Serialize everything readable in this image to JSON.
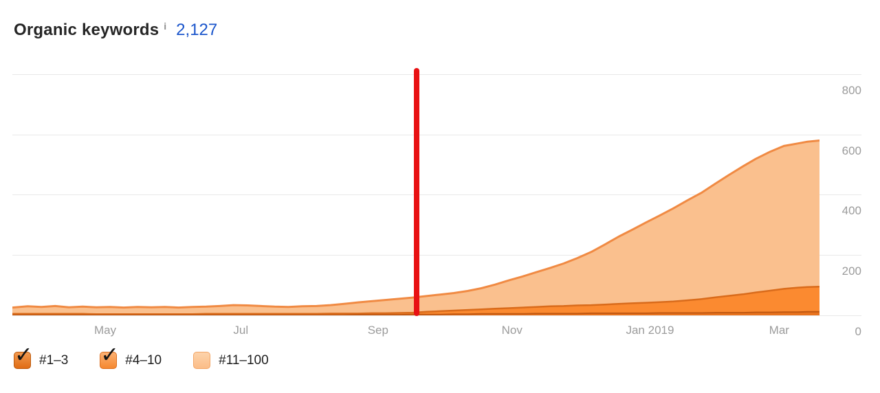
{
  "header": {
    "title": "Organic keywords",
    "info_icon": "i",
    "count": "2,127"
  },
  "chart_data": {
    "type": "area",
    "title": "Organic keywords",
    "stacked": true,
    "ylim": [
      0,
      818
    ],
    "y_ticks": [
      800,
      600,
      400,
      200,
      0
    ],
    "x_ticks": [
      {
        "label": "May",
        "x": 0.115
      },
      {
        "label": "Jul",
        "x": 0.283
      },
      {
        "label": "Sep",
        "x": 0.453
      },
      {
        "label": "Nov",
        "x": 0.619
      },
      {
        "label": "Jan 2019",
        "x": 0.79
      },
      {
        "label": "Mar",
        "x": 0.95
      }
    ],
    "grid": "horizontal",
    "legend_position": "bottom-left",
    "axis_color": "#9b9b9b",
    "grid_color": "#e8e8e8",
    "x": [
      0,
      0.019,
      0.036,
      0.053,
      0.07,
      0.087,
      0.104,
      0.121,
      0.138,
      0.155,
      0.172,
      0.189,
      0.206,
      0.223,
      0.24,
      0.257,
      0.274,
      0.291,
      0.308,
      0.325,
      0.342,
      0.359,
      0.377,
      0.394,
      0.411,
      0.428,
      0.445,
      0.462,
      0.479,
      0.496,
      0.513,
      0.53,
      0.547,
      0.564,
      0.581,
      0.598,
      0.615,
      0.632,
      0.649,
      0.666,
      0.683,
      0.7,
      0.717,
      0.734,
      0.751,
      0.768,
      0.785,
      0.802,
      0.819,
      0.836,
      0.854,
      0.871,
      0.888,
      0.905,
      0.921,
      0.939,
      0.956,
      0.973,
      0.985,
      1
    ],
    "series": [
      {
        "name": "#1–3",
        "fill": "#e8731e",
        "stroke": "#bf5711",
        "stroke_width": 2,
        "values": [
          1,
          1,
          1,
          1,
          1,
          1,
          1,
          1,
          1,
          1,
          1,
          1,
          1,
          1,
          1,
          1,
          1,
          1,
          1,
          1,
          1,
          1,
          1,
          1,
          1,
          2,
          2,
          2,
          2,
          3,
          3,
          3,
          4,
          4,
          5,
          5,
          5,
          5,
          6,
          6,
          6,
          6,
          7,
          7,
          7,
          7,
          7,
          8,
          8,
          8,
          8,
          9,
          9,
          9,
          10,
          10,
          11,
          11,
          12,
          12
        ]
      },
      {
        "name": "#4–10",
        "fill": "#fb8a30",
        "stroke": "#d96b1b",
        "stroke_width": 2.5,
        "values": [
          4,
          4,
          4,
          4,
          4,
          4,
          3,
          3,
          3,
          3,
          3,
          3,
          3,
          3,
          4,
          4,
          4,
          4,
          4,
          4,
          4,
          4,
          4,
          5,
          5,
          4,
          5,
          5,
          6,
          6,
          9,
          11,
          12,
          14,
          15,
          17,
          19,
          21,
          22,
          24,
          25,
          27,
          27,
          29,
          31,
          33,
          35,
          36,
          38,
          42,
          46,
          51,
          56,
          61,
          66,
          72,
          77,
          81,
          82,
          83
        ]
      },
      {
        "name": "#11–100",
        "fill": "#fac08e",
        "stroke": "#f08a43",
        "stroke_width": 3,
        "values": [
          21,
          25,
          23,
          26,
          22,
          24,
          23,
          24,
          22,
          24,
          23,
          24,
          22,
          24,
          24,
          26,
          29,
          28,
          26,
          24,
          23,
          25,
          26,
          28,
          32,
          37,
          40,
          44,
          47,
          50,
          52,
          55,
          58,
          63,
          70,
          80,
          92,
          103,
          115,
          127,
          141,
          157,
          176,
          199,
          223,
          244,
          266,
          287,
          309,
          331,
          353,
          377,
          401,
          424,
          443,
          461,
          474,
          478,
          482,
          485
        ]
      }
    ],
    "marker": {
      "type": "vertical-line",
      "x": 0.501,
      "color": "#e81113"
    }
  },
  "legend": {
    "items": [
      {
        "label": "#1–3",
        "checked": true,
        "cb_top": "#f29a50",
        "cb_bottom": "#e06c14",
        "cb_border": "#bc5a0d"
      },
      {
        "label": "#4–10",
        "checked": true,
        "cb_top": "#fcb173",
        "cb_bottom": "#f5882e",
        "cb_border": "#db6f1f"
      },
      {
        "label": "#11–100",
        "checked": false,
        "cb_top": "#fdd3ab",
        "cb_bottom": "#fbbd88",
        "cb_border": "#f3a566"
      }
    ]
  }
}
